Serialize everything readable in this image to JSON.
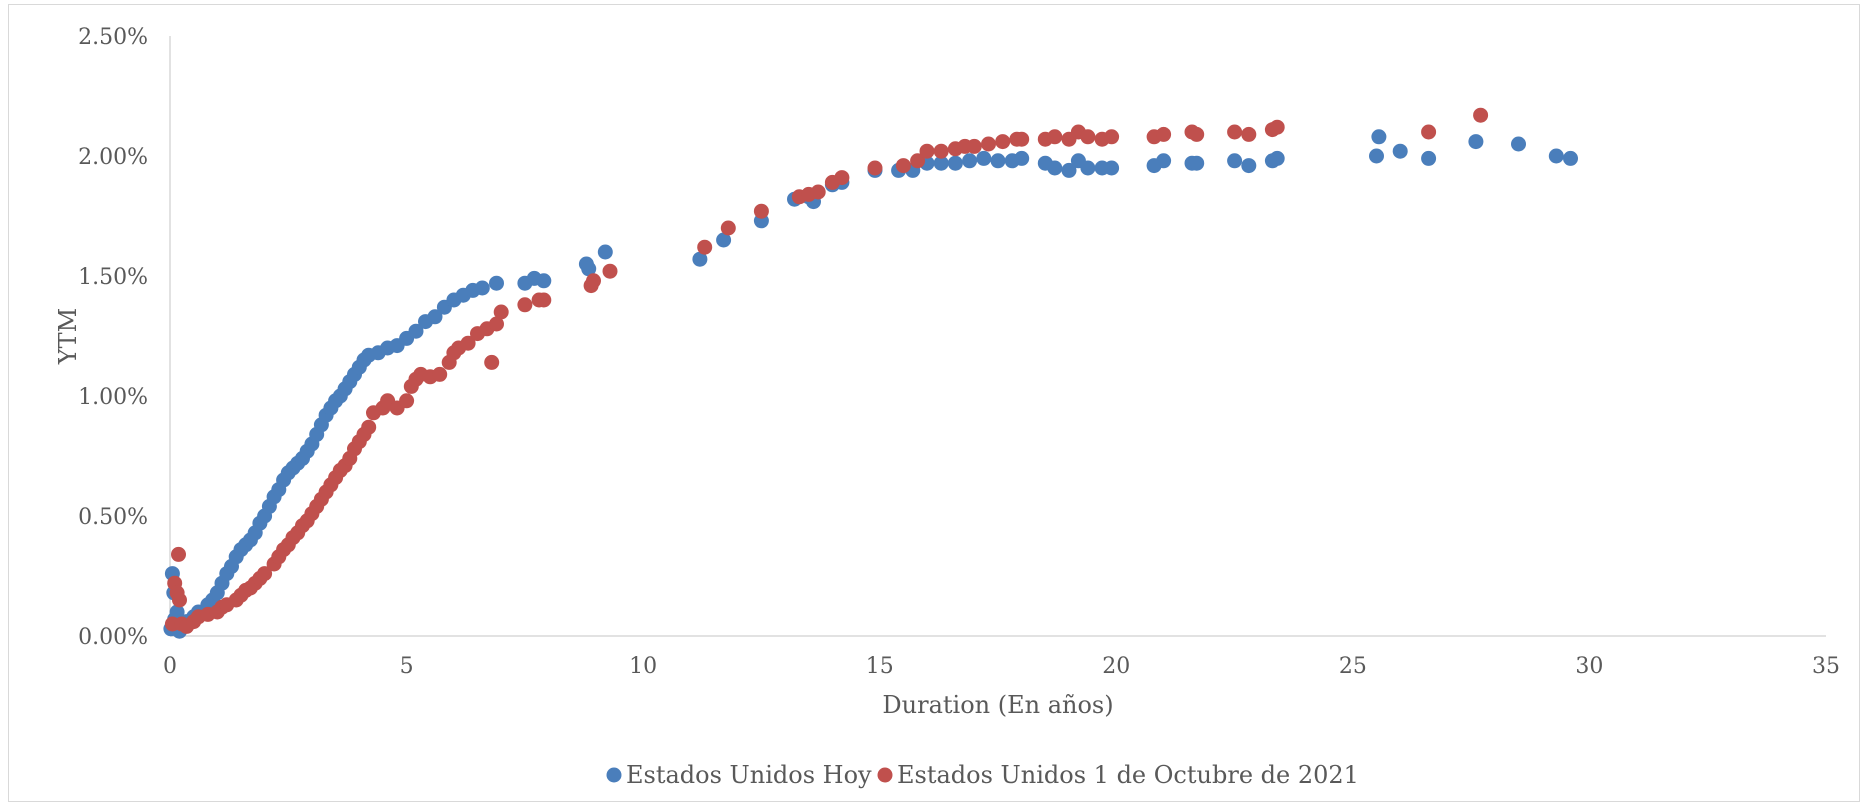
{
  "chart_data": {
    "type": "scatter",
    "title": "",
    "xlabel": "Duration (En años)",
    "ylabel": "YTM",
    "xlim": [
      0,
      35
    ],
    "ylim": [
      0,
      0.025
    ],
    "x_ticks": [
      0,
      5,
      10,
      15,
      20,
      25,
      30,
      35
    ],
    "y_ticks": [
      0,
      0.005,
      0.01,
      0.015,
      0.02,
      0.025
    ],
    "x_tick_labels": [
      "0",
      "5",
      "10",
      "15",
      "20",
      "25",
      "30",
      "35"
    ],
    "y_tick_labels": [
      "0.00%",
      "0.50%",
      "1.00%",
      "1.50%",
      "2.00%",
      "2.50%"
    ],
    "grid": false,
    "legend_position": "bottom",
    "series": [
      {
        "name": "Estados Unidos Hoy",
        "color": "#4a7ebb",
        "points": [
          [
            0.02,
            0.0003
          ],
          [
            0.05,
            0.0026
          ],
          [
            0.08,
            0.0018
          ],
          [
            0.1,
            0.0007
          ],
          [
            0.15,
            0.001
          ],
          [
            0.2,
            0.0002
          ],
          [
            0.25,
            0.0004
          ],
          [
            0.35,
            0.0006
          ],
          [
            0.5,
            0.0008
          ],
          [
            0.6,
            0.001
          ],
          [
            0.8,
            0.0013
          ],
          [
            0.9,
            0.0015
          ],
          [
            1.0,
            0.0018
          ],
          [
            1.1,
            0.0022
          ],
          [
            1.2,
            0.0026
          ],
          [
            1.3,
            0.0029
          ],
          [
            1.4,
            0.0033
          ],
          [
            1.5,
            0.0036
          ],
          [
            1.6,
            0.0038
          ],
          [
            1.7,
            0.004
          ],
          [
            1.8,
            0.0043
          ],
          [
            1.9,
            0.0047
          ],
          [
            2.0,
            0.005
          ],
          [
            2.1,
            0.0054
          ],
          [
            2.2,
            0.0058
          ],
          [
            2.3,
            0.0061
          ],
          [
            2.4,
            0.0065
          ],
          [
            2.5,
            0.0068
          ],
          [
            2.6,
            0.007
          ],
          [
            2.7,
            0.0072
          ],
          [
            2.8,
            0.0074
          ],
          [
            2.9,
            0.0077
          ],
          [
            3.0,
            0.008
          ],
          [
            3.1,
            0.0084
          ],
          [
            3.2,
            0.0088
          ],
          [
            3.3,
            0.0092
          ],
          [
            3.4,
            0.0095
          ],
          [
            3.5,
            0.0098
          ],
          [
            3.6,
            0.01
          ],
          [
            3.7,
            0.0103
          ],
          [
            3.8,
            0.0106
          ],
          [
            3.9,
            0.0109
          ],
          [
            4.0,
            0.0112
          ],
          [
            4.1,
            0.0115
          ],
          [
            4.2,
            0.0117
          ],
          [
            4.4,
            0.0118
          ],
          [
            4.6,
            0.012
          ],
          [
            4.8,
            0.0121
          ],
          [
            5.0,
            0.0124
          ],
          [
            5.2,
            0.0127
          ],
          [
            5.4,
            0.0131
          ],
          [
            5.6,
            0.0133
          ],
          [
            5.8,
            0.0137
          ],
          [
            6.0,
            0.014
          ],
          [
            6.2,
            0.0142
          ],
          [
            6.4,
            0.0144
          ],
          [
            6.6,
            0.0145
          ],
          [
            6.9,
            0.0147
          ],
          [
            7.5,
            0.0147
          ],
          [
            7.7,
            0.0149
          ],
          [
            7.9,
            0.0148
          ],
          [
            8.8,
            0.0155
          ],
          [
            8.85,
            0.0153
          ],
          [
            9.2,
            0.016
          ],
          [
            11.2,
            0.0157
          ],
          [
            11.7,
            0.0165
          ],
          [
            12.5,
            0.0173
          ],
          [
            13.2,
            0.0182
          ],
          [
            13.5,
            0.0183
          ],
          [
            13.6,
            0.0181
          ],
          [
            14.0,
            0.0188
          ],
          [
            14.2,
            0.0189
          ],
          [
            14.9,
            0.0194
          ],
          [
            15.4,
            0.0194
          ],
          [
            15.7,
            0.0194
          ],
          [
            16.0,
            0.0197
          ],
          [
            16.3,
            0.0197
          ],
          [
            16.6,
            0.0197
          ],
          [
            16.9,
            0.0198
          ],
          [
            17.2,
            0.0199
          ],
          [
            17.5,
            0.0198
          ],
          [
            17.8,
            0.0198
          ],
          [
            18.0,
            0.0199
          ],
          [
            18.5,
            0.0197
          ],
          [
            18.7,
            0.0195
          ],
          [
            19.0,
            0.0194
          ],
          [
            19.2,
            0.0198
          ],
          [
            19.4,
            0.0195
          ],
          [
            19.7,
            0.0195
          ],
          [
            19.9,
            0.0195
          ],
          [
            20.8,
            0.0196
          ],
          [
            21.0,
            0.0198
          ],
          [
            21.6,
            0.0197
          ],
          [
            21.7,
            0.0197
          ],
          [
            22.5,
            0.0198
          ],
          [
            22.8,
            0.0196
          ],
          [
            23.3,
            0.0198
          ],
          [
            23.4,
            0.0199
          ],
          [
            25.5,
            0.02
          ],
          [
            25.55,
            0.0208
          ],
          [
            26.0,
            0.0202
          ],
          [
            26.6,
            0.0199
          ],
          [
            27.6,
            0.0206
          ],
          [
            28.5,
            0.0205
          ],
          [
            29.3,
            0.02
          ],
          [
            29.6,
            0.0199
          ]
        ]
      },
      {
        "name": "Estados Unidos 1 de Octubre de 2021",
        "color": "#c0504d",
        "points": [
          [
            0.05,
            0.0005
          ],
          [
            0.1,
            0.0022
          ],
          [
            0.15,
            0.0018
          ],
          [
            0.18,
            0.0034
          ],
          [
            0.2,
            0.0015
          ],
          [
            0.25,
            0.0005
          ],
          [
            0.35,
            0.0004
          ],
          [
            0.5,
            0.0006
          ],
          [
            0.6,
            0.0008
          ],
          [
            0.8,
            0.0009
          ],
          [
            1.0,
            0.001
          ],
          [
            1.1,
            0.0012
          ],
          [
            1.2,
            0.0013
          ],
          [
            1.4,
            0.0015
          ],
          [
            1.5,
            0.0017
          ],
          [
            1.6,
            0.0019
          ],
          [
            1.7,
            0.002
          ],
          [
            1.8,
            0.0022
          ],
          [
            1.9,
            0.0024
          ],
          [
            2.0,
            0.0026
          ],
          [
            2.2,
            0.003
          ],
          [
            2.3,
            0.0033
          ],
          [
            2.4,
            0.0036
          ],
          [
            2.5,
            0.0038
          ],
          [
            2.6,
            0.0041
          ],
          [
            2.7,
            0.0043
          ],
          [
            2.8,
            0.0046
          ],
          [
            2.9,
            0.0048
          ],
          [
            3.0,
            0.0051
          ],
          [
            3.1,
            0.0054
          ],
          [
            3.2,
            0.0057
          ],
          [
            3.3,
            0.006
          ],
          [
            3.4,
            0.0063
          ],
          [
            3.5,
            0.0066
          ],
          [
            3.6,
            0.0069
          ],
          [
            3.7,
            0.0071
          ],
          [
            3.8,
            0.0074
          ],
          [
            3.9,
            0.0078
          ],
          [
            4.0,
            0.0081
          ],
          [
            4.1,
            0.0084
          ],
          [
            4.2,
            0.0087
          ],
          [
            4.3,
            0.0093
          ],
          [
            4.5,
            0.0095
          ],
          [
            4.6,
            0.0098
          ],
          [
            4.8,
            0.0095
          ],
          [
            5.0,
            0.0098
          ],
          [
            5.1,
            0.0104
          ],
          [
            5.2,
            0.0107
          ],
          [
            5.3,
            0.0109
          ],
          [
            5.5,
            0.0108
          ],
          [
            5.7,
            0.0109
          ],
          [
            5.9,
            0.0114
          ],
          [
            6.0,
            0.0118
          ],
          [
            6.1,
            0.012
          ],
          [
            6.3,
            0.0122
          ],
          [
            6.5,
            0.0126
          ],
          [
            6.7,
            0.0128
          ],
          [
            6.8,
            0.0114
          ],
          [
            6.9,
            0.013
          ],
          [
            7.0,
            0.0135
          ],
          [
            7.5,
            0.0138
          ],
          [
            7.8,
            0.014
          ],
          [
            7.9,
            0.014
          ],
          [
            8.9,
            0.0146
          ],
          [
            8.95,
            0.0148
          ],
          [
            9.3,
            0.0152
          ],
          [
            11.3,
            0.0162
          ],
          [
            11.8,
            0.017
          ],
          [
            12.5,
            0.0177
          ],
          [
            13.3,
            0.0183
          ],
          [
            13.5,
            0.0184
          ],
          [
            13.7,
            0.0185
          ],
          [
            14.0,
            0.0189
          ],
          [
            14.2,
            0.0191
          ],
          [
            14.9,
            0.0195
          ],
          [
            15.5,
            0.0196
          ],
          [
            15.8,
            0.0198
          ],
          [
            16.0,
            0.0202
          ],
          [
            16.3,
            0.0202
          ],
          [
            16.6,
            0.0203
          ],
          [
            16.8,
            0.0204
          ],
          [
            17.0,
            0.0204
          ],
          [
            17.3,
            0.0205
          ],
          [
            17.6,
            0.0206
          ],
          [
            17.9,
            0.0207
          ],
          [
            18.0,
            0.0207
          ],
          [
            18.5,
            0.0207
          ],
          [
            18.7,
            0.0208
          ],
          [
            19.0,
            0.0207
          ],
          [
            19.2,
            0.021
          ],
          [
            19.4,
            0.0208
          ],
          [
            19.7,
            0.0207
          ],
          [
            19.9,
            0.0208
          ],
          [
            20.8,
            0.0208
          ],
          [
            21.0,
            0.0209
          ],
          [
            21.6,
            0.021
          ],
          [
            21.7,
            0.0209
          ],
          [
            22.5,
            0.021
          ],
          [
            22.8,
            0.0209
          ],
          [
            23.3,
            0.0211
          ],
          [
            23.4,
            0.0212
          ],
          [
            26.6,
            0.021
          ],
          [
            27.7,
            0.0217
          ]
        ]
      }
    ]
  }
}
